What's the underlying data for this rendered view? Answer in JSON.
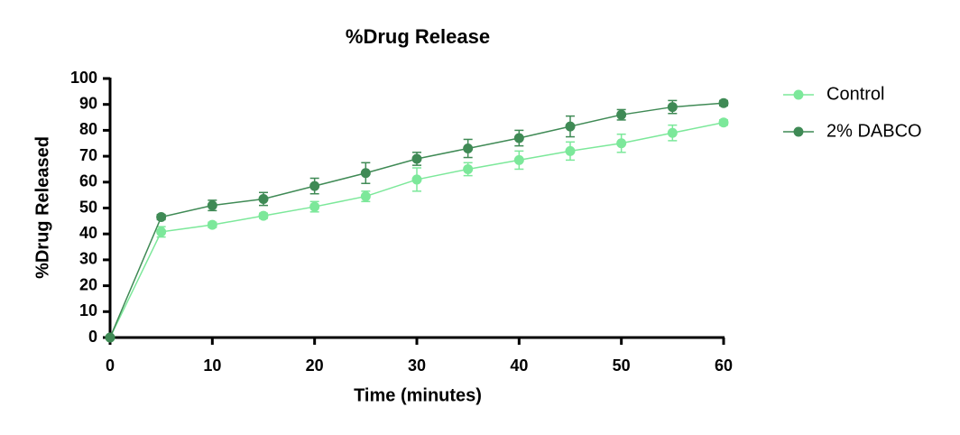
{
  "chart_data": {
    "type": "line",
    "title": "%Drug Release",
    "x_label": "Time (minutes)",
    "y_label": "%Drug Released",
    "x": [
      0,
      5,
      10,
      15,
      20,
      25,
      30,
      35,
      40,
      45,
      50,
      55,
      60
    ],
    "series": [
      {
        "name": "Control",
        "color": "#7ce89a",
        "values": [
          0,
          40.8,
          43.5,
          47,
          50.5,
          54.5,
          61,
          65,
          68.5,
          72,
          75,
          79,
          83
        ],
        "errors": [
          0,
          2,
          1,
          1,
          2,
          2,
          4.5,
          2.5,
          3.5,
          3.5,
          3.5,
          3,
          1
        ]
      },
      {
        "name": "2% DABCO",
        "color": "#3f8a55",
        "values": [
          0,
          46.5,
          51,
          53.5,
          58.5,
          63.5,
          69,
          73,
          77,
          81.5,
          86,
          89,
          90.5
        ],
        "errors": [
          0,
          1,
          2,
          2.5,
          3,
          4,
          2.5,
          3.5,
          3,
          4,
          2,
          2.5,
          1
        ]
      }
    ],
    "xlim": [
      0,
      60
    ],
    "xticks": [
      0,
      10,
      20,
      30,
      40,
      50,
      60
    ],
    "ylim": [
      0,
      100
    ],
    "yticks": [
      0,
      10,
      20,
      30,
      40,
      50,
      60,
      70,
      80,
      90,
      100
    ],
    "legend": "right"
  }
}
